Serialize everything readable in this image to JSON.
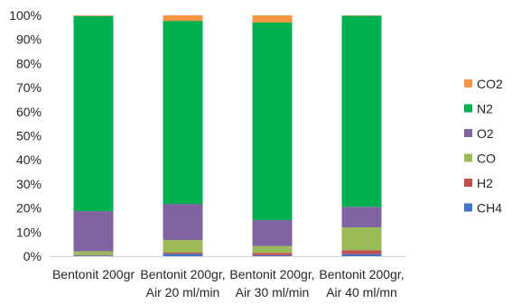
{
  "chart_data": {
    "type": "bar",
    "stacked": "percent",
    "categories": [
      [
        "Bentonit 200gr"
      ],
      [
        "Bentonit 200gr,",
        "Air 20 ml/min"
      ],
      [
        "Bentonit 200gr,",
        "Air 30 ml/min"
      ],
      [
        "Bentonit 200gr,",
        "Air 40 ml/mn"
      ]
    ],
    "series": [
      {
        "name": "CH4",
        "color": "#4472C4",
        "values": [
          0.3,
          1.0,
          0.4,
          0.9
        ]
      },
      {
        "name": "H2",
        "color": "#C0504D",
        "values": [
          0.2,
          0.5,
          1.0,
          1.6
        ]
      },
      {
        "name": "CO",
        "color": "#9BBB59",
        "values": [
          1.5,
          5.2,
          2.8,
          9.5
        ]
      },
      {
        "name": "O2",
        "color": "#8064A2",
        "values": [
          16.7,
          15.0,
          10.8,
          8.5
        ]
      },
      {
        "name": "N2",
        "color": "#00B050",
        "values": [
          81.0,
          76.0,
          82.0,
          79.3
        ]
      },
      {
        "name": "CO2",
        "color": "#F79646",
        "values": [
          0.3,
          2.3,
          3.0,
          0.2
        ]
      }
    ],
    "yticks": [
      "0%",
      "10%",
      "20%",
      "30%",
      "40%",
      "50%",
      "60%",
      "70%",
      "80%",
      "90%",
      "100%"
    ],
    "ylim": [
      0,
      100
    ],
    "title": "",
    "xlabel": "",
    "ylabel": "",
    "grid": false,
    "legend_position": "right"
  }
}
